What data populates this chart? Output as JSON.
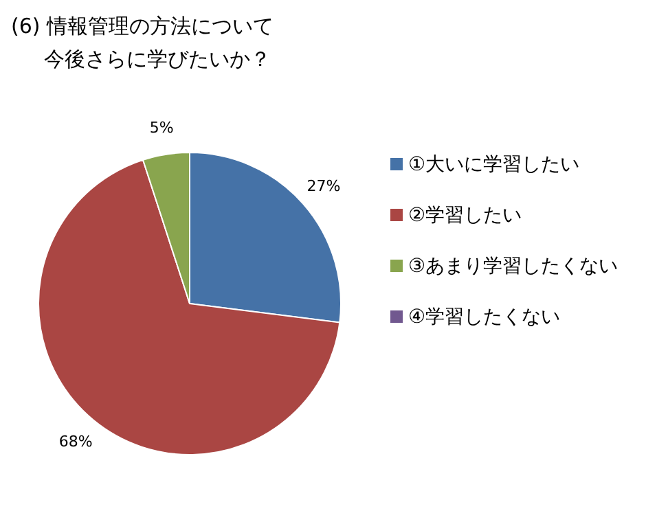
{
  "chart_data": {
    "type": "pie",
    "title": "(6) 情報管理の方法について",
    "subtitle": "今後さらに学びたいか？",
    "categories": [
      "①大いに学習したい",
      "②学習したい",
      "③あまり学習したくない",
      "④学習したくない"
    ],
    "values": [
      27,
      68,
      5,
      0
    ],
    "colors": [
      "#4572a7",
      "#aa4643",
      "#89a54e",
      "#71588f"
    ],
    "value_labels": [
      "27%",
      "68%",
      "5%",
      null
    ],
    "legend": "right"
  }
}
